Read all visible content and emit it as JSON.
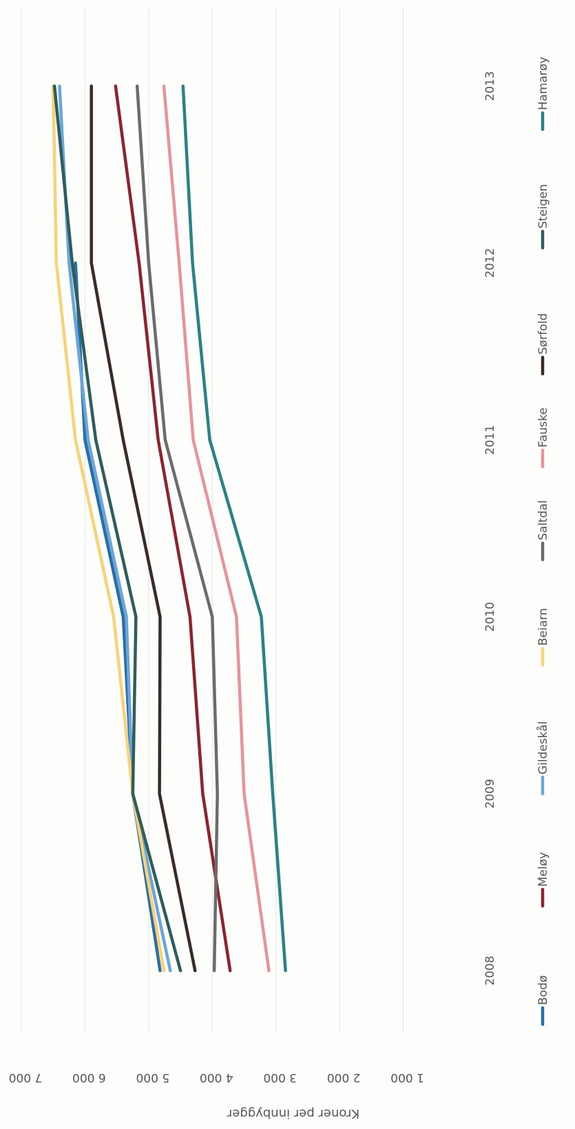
{
  "chart_data": {
    "type": "line",
    "orientation": "rotated-90-clockwise",
    "title": "",
    "xlabel": "",
    "ylabel": "Kroner per innbygger",
    "ylim": [
      0,
      7000
    ],
    "y_ticks": [
      0,
      1000,
      2000,
      3000,
      4000,
      5000,
      6000,
      7000
    ],
    "y_tick_labels": [
      "",
      "1 000",
      "2 000",
      "3 000",
      "4 000",
      "5 000",
      "6 000",
      "7 000"
    ],
    "x": [
      "2008",
      "2009",
      "2010",
      "2011",
      "2012",
      "2013"
    ],
    "grid": true,
    "legend_position": "bottom",
    "series": [
      {
        "name": "Bodø",
        "color": "#2a6ea6",
        "values": [
          4820,
          5250,
          5400,
          6000,
          6150,
          null
        ]
      },
      {
        "name": "Meløy",
        "color": "#8c2330",
        "values": [
          3720,
          4150,
          4350,
          4850,
          5150,
          5520
        ]
      },
      {
        "name": "Gildeskål",
        "color": "#6aa6da",
        "values": [
          4660,
          5250,
          5350,
          5950,
          6250,
          6400
        ]
      },
      {
        "name": "Beiarn",
        "color": "#f7d27a",
        "values": [
          4760,
          5250,
          5550,
          6150,
          6450,
          6500
        ]
      },
      {
        "name": "Saltdal",
        "color": "#6b6b6b",
        "values": [
          3970,
          3920,
          4000,
          4740,
          5000,
          5180
        ]
      },
      {
        "name": "Fauske",
        "color": "#e8939b",
        "values": [
          3110,
          3500,
          3620,
          4300,
          4520,
          4760
        ]
      },
      {
        "name": "Sørfold",
        "color": "#3a2b2b",
        "values": [
          4270,
          4830,
          4820,
          5400,
          5900,
          5900
        ]
      },
      {
        "name": "Steigen",
        "color": "#2f5c5c",
        "values": [
          4500,
          5250,
          5200,
          5830,
          6200,
          6480
        ]
      },
      {
        "name": "Hamarøy",
        "color": "#2a8285",
        "values": [
          2850,
          3050,
          3230,
          4040,
          4310,
          4460
        ]
      }
    ]
  }
}
